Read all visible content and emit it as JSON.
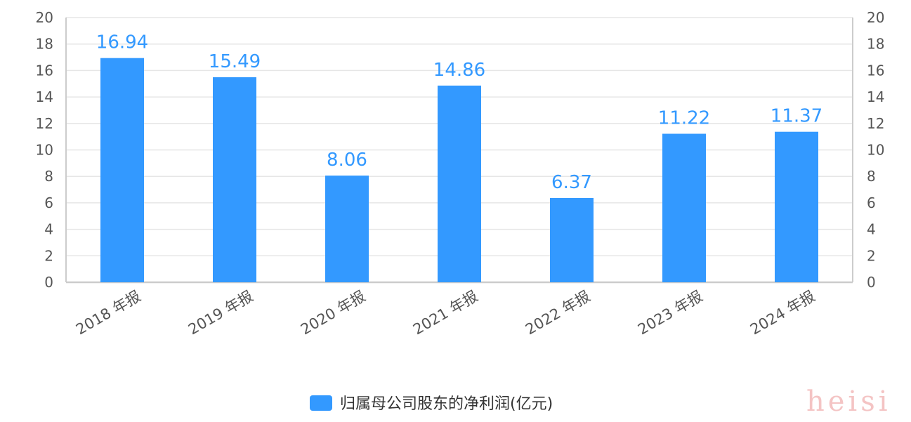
{
  "colors": {
    "bar": "#3399ff",
    "grid": "#e6e6e6",
    "axis": "#cccccc",
    "text": "#555555",
    "watermark": "#f4c4c4"
  },
  "chart_data": {
    "type": "bar",
    "categories": [
      "2018 年报",
      "2019 年报",
      "2020 年报",
      "2021 年报",
      "2022 年报",
      "2023 年报",
      "2024 年报"
    ],
    "series": [
      {
        "name": "归属母公司股东的净利润(亿元)",
        "values": [
          16.94,
          15.49,
          8.06,
          14.86,
          6.37,
          11.22,
          11.37
        ],
        "value_labels": [
          "16.94",
          "15.49",
          "8.06",
          "14.86",
          "6.37",
          "11.22",
          "11.37"
        ]
      }
    ],
    "ylim": [
      0,
      20
    ],
    "yticks": [
      "0",
      "2",
      "4",
      "6",
      "8",
      "10",
      "12",
      "14",
      "16",
      "18",
      "20"
    ],
    "grid": true,
    "legend_position": "bottom-center",
    "dual_axis_labels": true
  },
  "watermark": {
    "text": "heisi"
  }
}
